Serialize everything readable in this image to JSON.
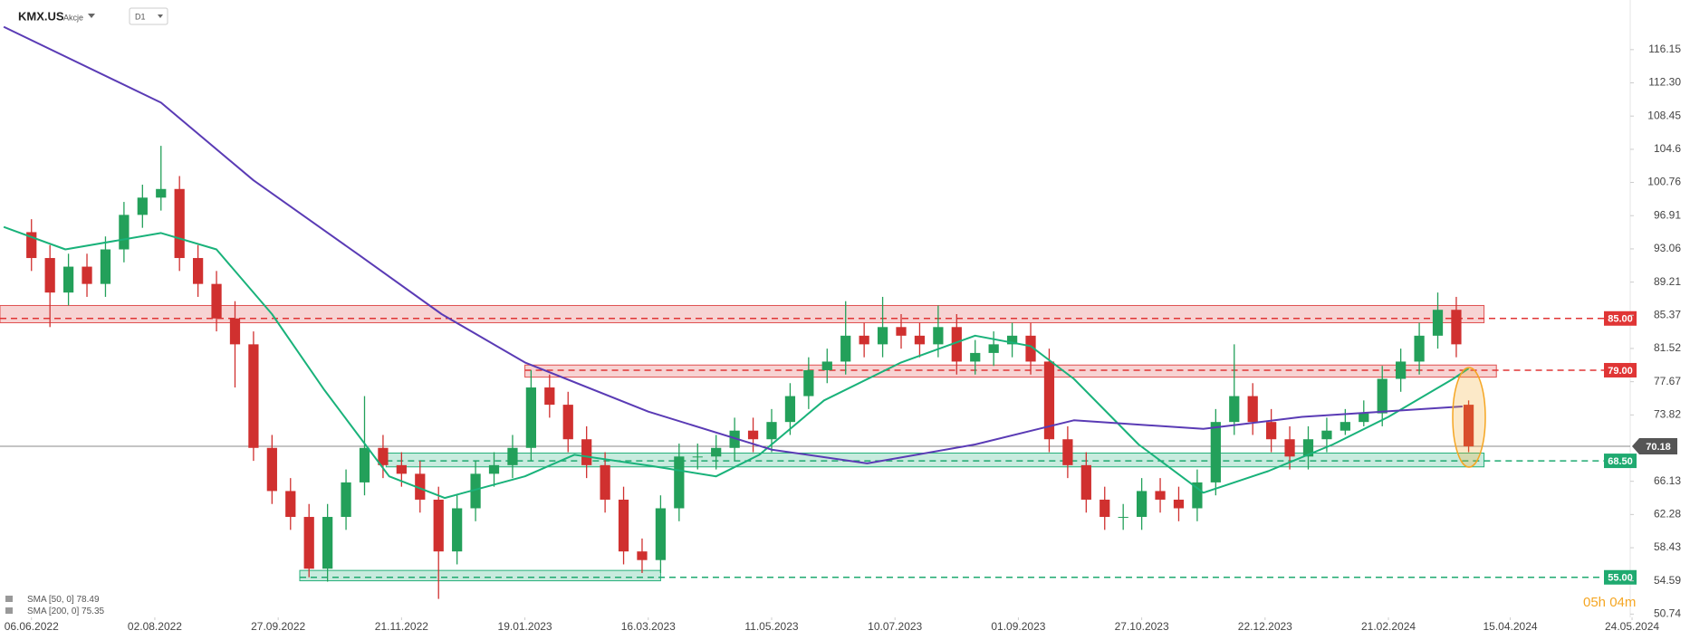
{
  "chart_data": {
    "type": "candlestick",
    "symbol": "KMX.US",
    "asset_class": "Akcje",
    "interval": "D1",
    "colors": {
      "up": "#23a05a",
      "down": "#d0302f"
    },
    "x": [
      0,
      6,
      12,
      18,
      24,
      30,
      36,
      42,
      48,
      54,
      60,
      66,
      72,
      78,
      84,
      90,
      96,
      102,
      108,
      114,
      120,
      126,
      132,
      138,
      144,
      150,
      156,
      162,
      168,
      174,
      180,
      186,
      192,
      198,
      204,
      210,
      216,
      222,
      228,
      234,
      240,
      246,
      252,
      258,
      264,
      270,
      276,
      282,
      288,
      294,
      300,
      306,
      312,
      318,
      324,
      330,
      336,
      342,
      348,
      354,
      360,
      366,
      372,
      378,
      384,
      390,
      396,
      402,
      408,
      414,
      420,
      426,
      432,
      438,
      444,
      450,
      456,
      462,
      466
    ],
    "open": [
      95,
      92,
      88,
      91,
      89,
      93,
      97,
      99,
      100,
      92,
      89,
      85,
      82,
      70,
      65,
      62,
      56,
      62,
      66,
      70,
      68,
      67,
      64,
      58,
      63,
      67,
      68,
      70,
      77,
      75,
      71,
      68,
      64,
      58,
      57,
      63,
      69,
      69,
      70,
      72,
      71,
      73,
      76,
      79,
      80,
      83,
      82,
      84,
      83,
      82,
      84,
      80,
      81,
      82,
      83,
      80,
      71,
      68,
      64,
      62,
      62,
      65,
      64,
      63,
      66,
      73,
      76,
      73,
      71,
      69,
      71,
      72,
      73,
      74,
      78,
      80,
      83,
      86,
      75
    ],
    "high": [
      96.5,
      93.5,
      92.5,
      92.5,
      94.5,
      98.5,
      100.5,
      105,
      101.5,
      93.5,
      90.5,
      87,
      83.5,
      71.5,
      66.5,
      63.5,
      63.5,
      67.5,
      76,
      71.5,
      69.5,
      68.5,
      65.5,
      64.5,
      68.5,
      69.5,
      71.5,
      79,
      78.5,
      76.5,
      72.5,
      69.5,
      65.5,
      59.5,
      64.5,
      70.5,
      70.5,
      71.5,
      73.5,
      73.5,
      74.5,
      77.5,
      80.5,
      81.5,
      87,
      84.5,
      87.5,
      85.5,
      84.5,
      86.5,
      85.5,
      82.5,
      83.5,
      84.5,
      84.5,
      81.5,
      72.5,
      69.5,
      65.5,
      63.5,
      66.5,
      66.5,
      65.5,
      67.5,
      74.5,
      82,
      77.5,
      74.5,
      72.5,
      72.5,
      73.5,
      74.5,
      75.5,
      79.5,
      81.5,
      84.5,
      88,
      87.5,
      75.5
    ],
    "low": [
      90.5,
      84,
      86.5,
      87.5,
      87.5,
      91.5,
      95.5,
      97.5,
      90.5,
      87.5,
      83.5,
      77,
      68.5,
      63.5,
      60.5,
      55,
      54.5,
      60.5,
      64.5,
      66.5,
      65.5,
      62.5,
      52.5,
      56.5,
      61.5,
      65.5,
      66.5,
      68.5,
      73.5,
      69.5,
      66.5,
      62.5,
      56.5,
      55.5,
      55.5,
      61.5,
      67.5,
      67.5,
      68.5,
      69.5,
      69.5,
      71.5,
      74.5,
      77.5,
      78.5,
      80.5,
      80.5,
      81.5,
      80.5,
      80.5,
      78.5,
      78.5,
      79.5,
      80.5,
      78.5,
      69.5,
      66.5,
      62.5,
      60.5,
      60.5,
      60.5,
      62.5,
      61.5,
      61.5,
      64.5,
      71.5,
      71.5,
      69.5,
      67.5,
      67.5,
      69.5,
      71.5,
      72.5,
      72.5,
      76.5,
      78.5,
      81.5,
      80.5,
      69.5
    ],
    "close": [
      92,
      88,
      91,
      89,
      93,
      97,
      99,
      100,
      92,
      89,
      85,
      82,
      70,
      65,
      62,
      56,
      62,
      66,
      70,
      68,
      67,
      64,
      58,
      63,
      67,
      68,
      70,
      77,
      75,
      71,
      68,
      64,
      58,
      57,
      63,
      69,
      69,
      70,
      72,
      71,
      73,
      76,
      79,
      80,
      83,
      82,
      84,
      83,
      82,
      84,
      80,
      81,
      82,
      83,
      80,
      71,
      68,
      64,
      62,
      62,
      65,
      64,
      63,
      66,
      73,
      76,
      73,
      71,
      69,
      71,
      72,
      73,
      74,
      78,
      80,
      83,
      86,
      82,
      70.18
    ],
    "xlim": [
      -10.2,
      518.4
    ],
    "xticks": [
      {
        "value": 0,
        "label": "06.06.2022"
      },
      {
        "value": 40,
        "label": "02.08.2022"
      },
      {
        "value": 80,
        "label": "27.09.2022"
      },
      {
        "value": 120,
        "label": "21.11.2022"
      },
      {
        "value": 160,
        "label": "19.01.2023"
      },
      {
        "value": 200,
        "label": "16.03.2023"
      },
      {
        "value": 240,
        "label": "11.05.2023"
      },
      {
        "value": 280,
        "label": "10.07.2023"
      },
      {
        "value": 320,
        "label": "01.09.2023"
      },
      {
        "value": 360,
        "label": "27.10.2023"
      },
      {
        "value": 400,
        "label": "22.12.2023"
      },
      {
        "value": 440,
        "label": "21.02.2024"
      },
      {
        "value": 479.5,
        "label": "15.04.2024"
      },
      {
        "value": 519,
        "label": "24.05.2024"
      }
    ],
    "ylim": [
      50.36,
      121.9
    ],
    "yticks": [
      116.15,
      {
        "value": 112.3,
        "label": "112.30"
      },
      108.45,
      104.6,
      100.76,
      96.91,
      93.06,
      89.21,
      85.37,
      81.52,
      77.67,
      73.82,
      66.13,
      62.28,
      58.43,
      54.59,
      50.74
    ],
    "overlays": [
      {
        "name": "SMA [50, 0]",
        "last": 78.49,
        "color": "#19b27a",
        "x": [
          -9,
          11,
          42,
          60,
          78,
          95,
          116,
          134,
          160,
          176,
          201,
          222,
          236,
          257,
          282,
          306,
          324,
          338,
          359,
          380,
          401,
          422,
          440,
          461,
          466
        ],
        "values": [
          95.6,
          93,
          94.9,
          93,
          85.5,
          76.7,
          66.7,
          64.2,
          66.7,
          69.2,
          67.9,
          66.7,
          69.2,
          75.5,
          79.9,
          83,
          81.8,
          78,
          70.4,
          64.8,
          67.3,
          70.4,
          73.6,
          78,
          79.2
        ]
      },
      {
        "name": "SMA [200, 0]",
        "last": 75.35,
        "color": "#5a3bb5",
        "x": [
          -9,
          42,
          72,
          106,
          133,
          160,
          200,
          240,
          271,
          306,
          338,
          380,
          412,
          464
        ],
        "values": [
          118.8,
          110,
          101,
          92.4,
          85.5,
          79.9,
          74.2,
          69.8,
          68.2,
          70.4,
          73.2,
          72.2,
          73.6,
          74.8
        ]
      }
    ],
    "zones": [
      {
        "from": -10.2,
        "to": 471,
        "low": 84.5,
        "high": 86.5,
        "color": "#e05050"
      },
      {
        "from": 160,
        "to": 475,
        "low": 78.2,
        "high": 79.6,
        "color": "#e05050"
      },
      {
        "from": 115,
        "to": 471,
        "low": 67.8,
        "high": 69.4,
        "color": "#25b07a"
      },
      {
        "from": 87,
        "to": 204,
        "low": 54.6,
        "high": 55.8,
        "color": "#25b07a"
      }
    ],
    "levels": [
      {
        "value": 85,
        "label": "85.00",
        "from": -10.2,
        "color": "#e03535"
      },
      {
        "value": 79,
        "label": "79.00",
        "from": 160,
        "color": "#e03535"
      },
      {
        "value": 68.5,
        "label": "68.50",
        "from": 115,
        "color": "#1faa70"
      },
      {
        "value": 55,
        "label": "55.00",
        "from": 87,
        "color": "#1faa70"
      }
    ],
    "last_price": 70.18,
    "timer": "05h 04m"
  }
}
